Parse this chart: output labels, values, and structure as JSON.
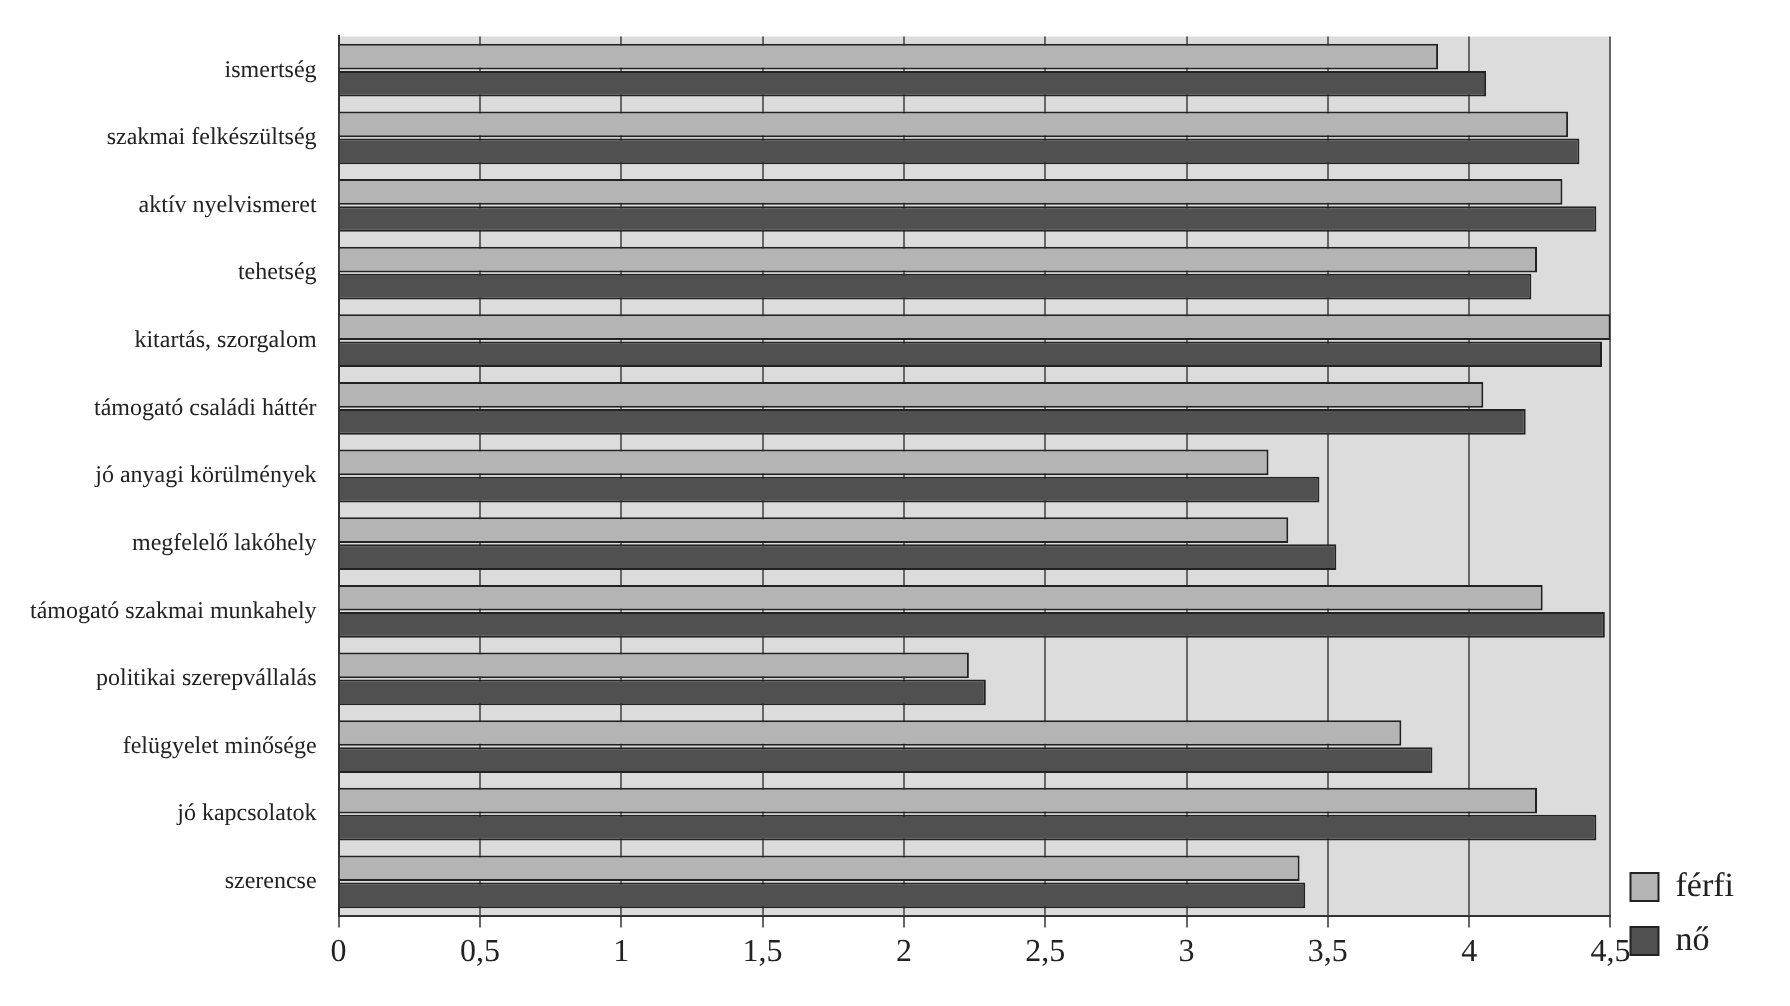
{
  "chart_data": {
    "type": "bar",
    "orientation": "horizontal",
    "categories": [
      "ismertség",
      "szakmai felkészültség",
      "aktív nyelvismeret",
      "tehetség",
      "kitartás, szorgalom",
      "támogató családi háttér",
      "jó anyagi körülmények",
      "megfelelő lakóhely",
      "támogató szakmai munkahely",
      "politikai szerepvállalás",
      "felügyelet minősége",
      "jó kapcsolatok",
      "szerencse"
    ],
    "series": [
      {
        "name": "férfi",
        "color": "#b4b4b4",
        "values": [
          3.89,
          4.35,
          4.33,
          4.24,
          4.5,
          4.05,
          3.29,
          3.36,
          4.26,
          2.23,
          3.76,
          4.24,
          3.4
        ]
      },
      {
        "name": "nő",
        "color": "#505050",
        "values": [
          4.06,
          4.39,
          4.45,
          4.22,
          4.47,
          4.2,
          3.47,
          3.53,
          4.48,
          2.29,
          3.87,
          4.45,
          3.42
        ]
      }
    ],
    "xlim": [
      0,
      4.5
    ],
    "xticks": [
      0,
      {
        "value": 0.5,
        "label": "0,5"
      },
      1,
      {
        "value": 1.5,
        "label": "1,5"
      },
      2,
      {
        "value": 2.5,
        "label": "2,5"
      },
      3,
      {
        "value": 3.5,
        "label": "3,5"
      },
      4,
      {
        "value": 4.5,
        "label": "4,5"
      }
    ],
    "grid": "x",
    "legend": "bottom right"
  }
}
